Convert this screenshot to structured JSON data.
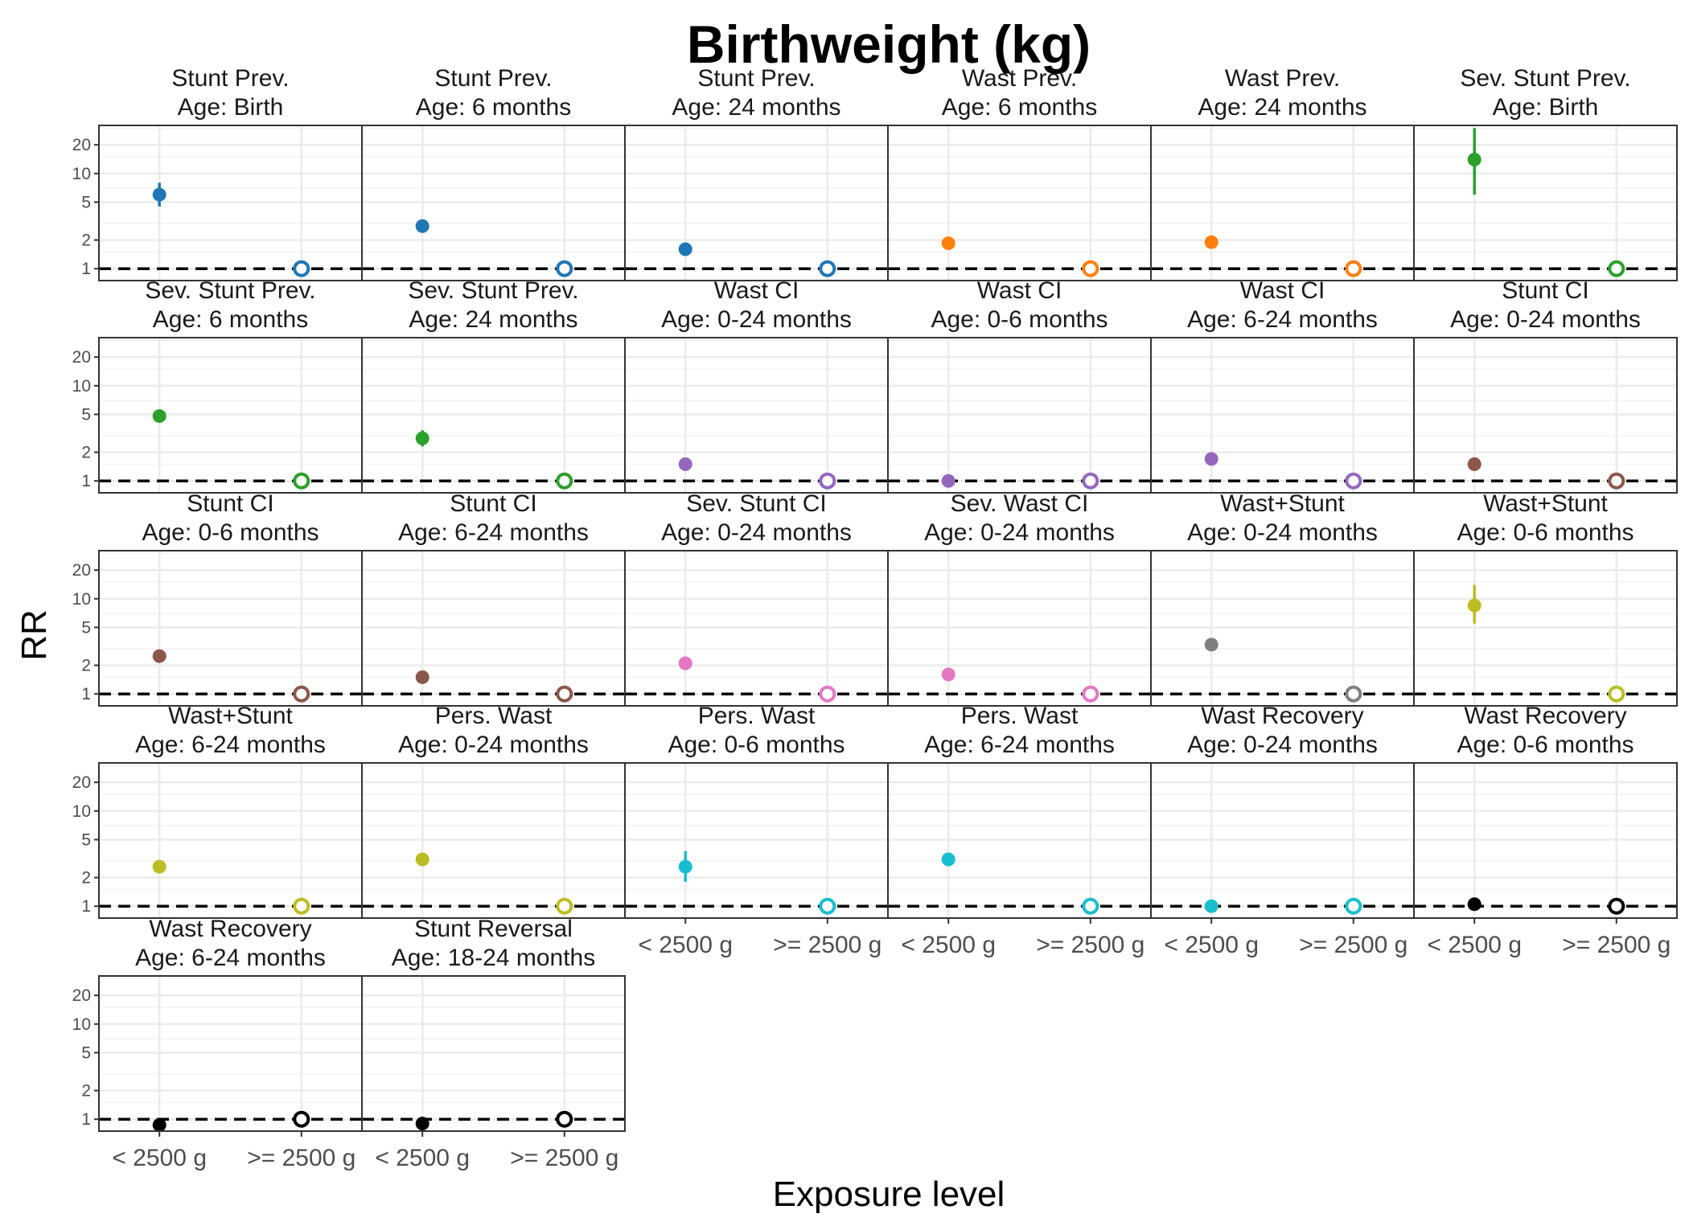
{
  "chart_data": {
    "type": "scatter",
    "title": "Birthweight (kg)",
    "xlabel": "Exposure level",
    "ylabel": "RR",
    "y_scale": "log",
    "ylim": [
      0.75,
      32
    ],
    "y_ticks": [
      1,
      2,
      5,
      10,
      20
    ],
    "categories": [
      "< 2500 g",
      ">= 2500 g"
    ],
    "reference_line": 1,
    "grid": true,
    "layout": "facet-wrap, 6 columns",
    "panels": [
      {
        "outcome": "Stunt Prev.",
        "age": "Age: Birth",
        "color": "#1f77b4",
        "rr": 6.0,
        "ci": [
          4.5,
          8.0
        ]
      },
      {
        "outcome": "Stunt Prev.",
        "age": "Age: 6 months",
        "color": "#1f77b4",
        "rr": 2.8,
        "ci": [
          2.6,
          3.0
        ]
      },
      {
        "outcome": "Stunt Prev.",
        "age": "Age: 24 months",
        "color": "#1f77b4",
        "rr": 1.6,
        "ci": [
          1.5,
          1.7
        ]
      },
      {
        "outcome": "Wast Prev.",
        "age": "Age: 6 months",
        "color": "#ff7f0e",
        "rr": 1.85,
        "ci": [
          1.7,
          2.0
        ]
      },
      {
        "outcome": "Wast Prev.",
        "age": "Age: 24 months",
        "color": "#ff7f0e",
        "rr": 1.9,
        "ci": [
          1.75,
          2.05
        ]
      },
      {
        "outcome": "Sev. Stunt Prev.",
        "age": "Age: Birth",
        "color": "#2ca02c",
        "rr": 14.0,
        "ci": [
          6.0,
          30.0
        ]
      },
      {
        "outcome": "Sev. Stunt Prev.",
        "age": "Age: 6 months",
        "color": "#2ca02c",
        "rr": 4.8,
        "ci": [
          4.2,
          5.5
        ]
      },
      {
        "outcome": "Sev. Stunt Prev.",
        "age": "Age: 24 months",
        "color": "#2ca02c",
        "rr": 2.8,
        "ci": [
          2.3,
          3.4
        ]
      },
      {
        "outcome": "Wast CI",
        "age": "Age: 0-24 months",
        "color": "#9467bd",
        "rr": 1.5,
        "ci": [
          1.4,
          1.6
        ]
      },
      {
        "outcome": "Wast CI",
        "age": "Age: 0-6 months",
        "color": "#9467bd",
        "rr": 1.0,
        "ci": [
          0.95,
          1.05
        ]
      },
      {
        "outcome": "Wast CI",
        "age": "Age: 6-24 months",
        "color": "#9467bd",
        "rr": 1.7,
        "ci": [
          1.6,
          1.8
        ]
      },
      {
        "outcome": "Stunt CI",
        "age": "Age: 0-24 months",
        "color": "#8c564b",
        "rr": 1.5,
        "ci": [
          1.45,
          1.55
        ]
      },
      {
        "outcome": "Stunt CI",
        "age": "Age: 0-6 months",
        "color": "#8c564b",
        "rr": 2.5,
        "ci": [
          2.3,
          2.7
        ]
      },
      {
        "outcome": "Stunt CI",
        "age": "Age: 6-24 months",
        "color": "#8c564b",
        "rr": 1.5,
        "ci": [
          1.4,
          1.6
        ]
      },
      {
        "outcome": "Sev. Stunt CI",
        "age": "Age: 0-24 months",
        "color": "#e377c2",
        "rr": 2.1,
        "ci": [
          1.95,
          2.25
        ]
      },
      {
        "outcome": "Sev. Wast CI",
        "age": "Age: 0-24 months",
        "color": "#e377c2",
        "rr": 1.6,
        "ci": [
          1.5,
          1.7
        ]
      },
      {
        "outcome": "Wast+Stunt",
        "age": "Age: 0-24 months",
        "color": "#7f7f7f",
        "rr": 3.3,
        "ci": [
          3.1,
          3.5
        ]
      },
      {
        "outcome": "Wast+Stunt",
        "age": "Age: 0-6 months",
        "color": "#bcbd22",
        "rr": 8.5,
        "ci": [
          5.5,
          14.0
        ]
      },
      {
        "outcome": "Wast+Stunt",
        "age": "Age: 6-24 months",
        "color": "#bcbd22",
        "rr": 2.6,
        "ci": [
          2.4,
          2.8
        ]
      },
      {
        "outcome": "Pers. Wast",
        "age": "Age: 0-24 months",
        "color": "#bcbd22",
        "rr": 3.1,
        "ci": [
          2.9,
          3.3
        ]
      },
      {
        "outcome": "Pers. Wast",
        "age": "Age: 0-6 months",
        "color": "#17becf",
        "rr": 2.6,
        "ci": [
          1.8,
          3.8
        ]
      },
      {
        "outcome": "Pers. Wast",
        "age": "Age: 6-24 months",
        "color": "#17becf",
        "rr": 3.1,
        "ci": [
          2.9,
          3.3
        ]
      },
      {
        "outcome": "Wast Recovery",
        "age": "Age: 0-24 months",
        "color": "#17becf",
        "rr": 1.0,
        "ci": [
          0.97,
          1.03
        ]
      },
      {
        "outcome": "Wast Recovery",
        "age": "Age: 0-6 months",
        "color": "#000000",
        "rr": 1.05,
        "ci": [
          1.0,
          1.1
        ]
      },
      {
        "outcome": "Wast Recovery",
        "age": "Age: 6-24 months",
        "color": "#000000",
        "rr": 0.87,
        "ci": [
          0.82,
          0.92
        ]
      },
      {
        "outcome": "Stunt Reversal",
        "age": "Age: 18-24 months",
        "color": "#000000",
        "rr": 0.9,
        "ci": [
          0.82,
          0.98
        ]
      }
    ]
  }
}
